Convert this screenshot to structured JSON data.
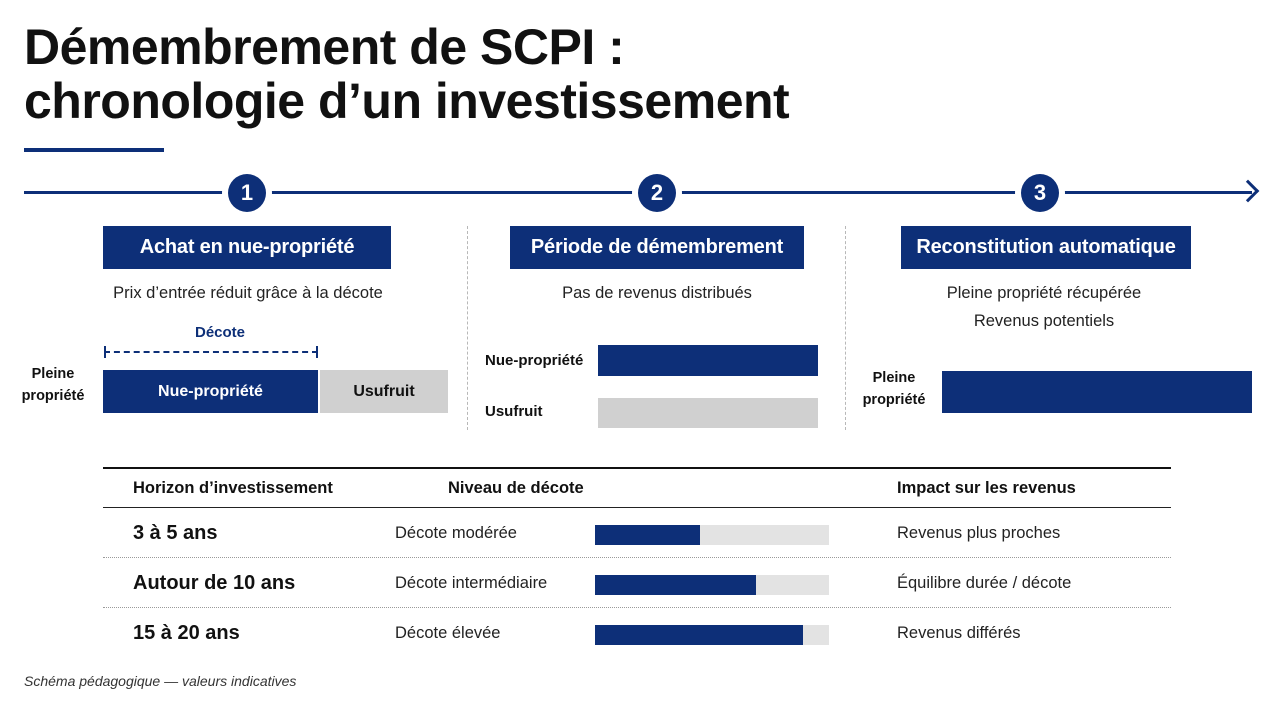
{
  "title": {
    "line1": "Démembrement de SCPI :",
    "line2": "chronologie d’un investissement"
  },
  "colors": {
    "navy": "#0d2f78",
    "grey": "#d0d0d0",
    "light_grey": "#e3e3e3"
  },
  "steps": [
    {
      "number": "1",
      "label": "Achat en nue-propriété",
      "desc": "Prix d’entrée réduit grâce à la décote",
      "decote_label": "Décote",
      "side_label_line1": "Pleine",
      "side_label_line2": "propriété",
      "bar_nue": "Nue-propriété",
      "bar_usufruit": "Usufruit"
    },
    {
      "number": "2",
      "label": "Période de démembrement",
      "desc": "Pas de revenus distribués",
      "row1_label": "Nue-propriété",
      "row2_label": "Usufruit"
    },
    {
      "number": "3",
      "label": "Reconstitution automatique",
      "desc_line1": "Pleine propriété récupérée",
      "desc_line2": "Revenus potentiels",
      "side_label_line1": "Pleine",
      "side_label_line2": "propriété"
    }
  ],
  "table": {
    "headers": {
      "horizon": "Horizon d’investissement",
      "decote": "Niveau de décote",
      "impact": "Impact sur les revenus"
    },
    "rows": [
      {
        "horizon": "3 à 5 ans",
        "decote": "Décote modérée",
        "level": 0.45,
        "impact": "Revenus plus proches"
      },
      {
        "horizon": "Autour de 10 ans",
        "decote": "Décote intermédiaire",
        "level": 0.69,
        "impact": "Équilibre durée / décote"
      },
      {
        "horizon": "15 à 20 ans",
        "decote": "Décote élevée",
        "level": 0.89,
        "impact": "Revenus différés"
      }
    ]
  },
  "footnote": "Schéma pédagogique — valeurs indicatives"
}
